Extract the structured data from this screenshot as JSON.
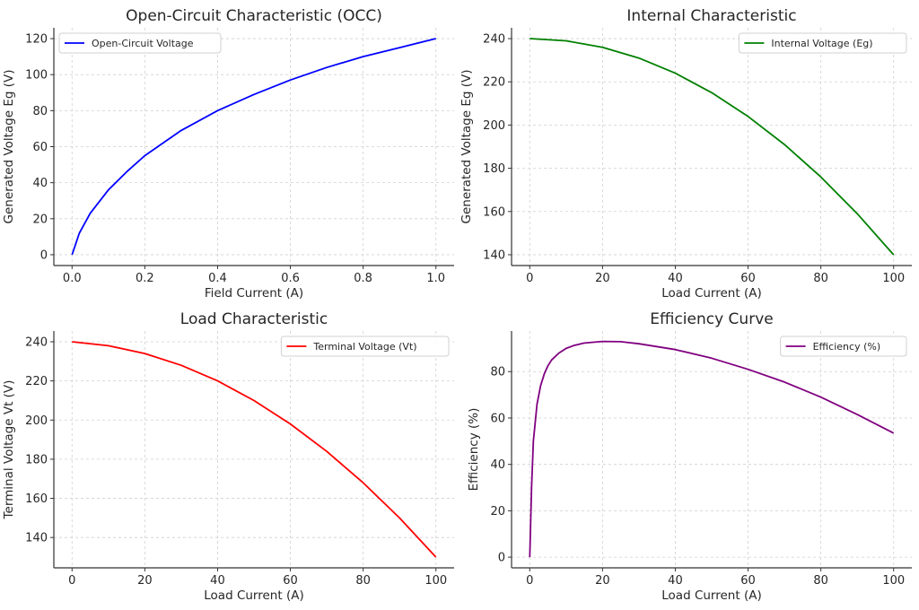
{
  "chart_data": [
    {
      "type": "line",
      "title": "Open-Circuit Characteristic (OCC)",
      "xlabel": "Field Current (A)",
      "ylabel": "Generated Voltage Eg (V)",
      "xlim": [
        -0.05,
        1.05
      ],
      "ylim": [
        -6,
        126
      ],
      "xticks": [
        0.0,
        0.2,
        0.4,
        0.6,
        0.8,
        1.0
      ],
      "xtick_labels": [
        "0.0",
        "0.2",
        "0.4",
        "0.6",
        "0.8",
        "1.0"
      ],
      "yticks": [
        0,
        20,
        40,
        60,
        80,
        100,
        120
      ],
      "grid": true,
      "legend_position": "top-left",
      "series": [
        {
          "name": "Open-Circuit Voltage",
          "color": "#0000ff",
          "x": [
            0,
            0.02,
            0.05,
            0.1,
            0.15,
            0.2,
            0.3,
            0.4,
            0.5,
            0.6,
            0.7,
            0.8,
            0.9,
            1.0
          ],
          "y": [
            0,
            12,
            23,
            36,
            46,
            55,
            69,
            80,
            89,
            97,
            104,
            110,
            115,
            120
          ]
        }
      ]
    },
    {
      "type": "line",
      "title": "Internal Characteristic",
      "xlabel": "Load Current (A)",
      "ylabel": "Generated Voltage Eg (V)",
      "xlim": [
        -5,
        105
      ],
      "ylim": [
        135,
        245
      ],
      "xticks": [
        0,
        20,
        40,
        60,
        80,
        100
      ],
      "xtick_labels": [
        "0",
        "20",
        "40",
        "60",
        "80",
        "100"
      ],
      "yticks": [
        140,
        160,
        180,
        200,
        220,
        240
      ],
      "grid": true,
      "legend_position": "top-right",
      "series": [
        {
          "name": "Internal Voltage (Eg)",
          "color": "#008000",
          "x": [
            0,
            10,
            20,
            30,
            40,
            50,
            60,
            70,
            80,
            90,
            100
          ],
          "y": [
            240,
            239,
            236,
            231,
            224,
            215,
            204,
            191,
            176,
            159,
            140
          ]
        }
      ]
    },
    {
      "type": "line",
      "title": "Load Characteristic",
      "xlabel": "Load Current (A)",
      "ylabel": "Terminal Voltage Vt (V)",
      "xlim": [
        -5,
        105
      ],
      "ylim": [
        124.5,
        245.5
      ],
      "xticks": [
        0,
        20,
        40,
        60,
        80,
        100
      ],
      "xtick_labels": [
        "0",
        "20",
        "40",
        "60",
        "80",
        "100"
      ],
      "yticks": [
        140,
        160,
        180,
        200,
        220,
        240
      ],
      "grid": true,
      "legend_position": "top-right",
      "series": [
        {
          "name": "Terminal Voltage (Vt)",
          "color": "#ff0000",
          "x": [
            0,
            10,
            20,
            30,
            40,
            50,
            60,
            70,
            80,
            90,
            100
          ],
          "y": [
            240,
            238,
            234,
            228,
            220,
            210,
            198,
            184,
            168,
            150,
            130
          ]
        }
      ]
    },
    {
      "type": "line",
      "title": "Efficiency Curve",
      "xlabel": "Load Current (A)",
      "ylabel": "Efficiency (%)",
      "xlim": [
        -5,
        105
      ],
      "ylim": [
        -4.6,
        97.5
      ],
      "xticks": [
        0,
        20,
        40,
        60,
        80,
        100
      ],
      "xtick_labels": [
        "0",
        "20",
        "40",
        "60",
        "80",
        "100"
      ],
      "yticks": [
        0,
        20,
        40,
        60,
        80
      ],
      "grid": true,
      "legend_position": "top-right",
      "series": [
        {
          "name": "Efficiency (%)",
          "color": "#800080",
          "x": [
            0,
            0.5,
            1,
            2,
            3,
            4,
            5,
            6,
            8,
            10,
            12,
            15,
            20,
            25,
            30,
            40,
            50,
            60,
            70,
            80,
            90,
            100
          ],
          "y": [
            0,
            30,
            50,
            66,
            74,
            79,
            82.5,
            85,
            88,
            90,
            91.2,
            92.3,
            93,
            92.9,
            92,
            89.5,
            85.8,
            81,
            75.5,
            69,
            61.5,
            53.5
          ]
        }
      ]
    }
  ]
}
